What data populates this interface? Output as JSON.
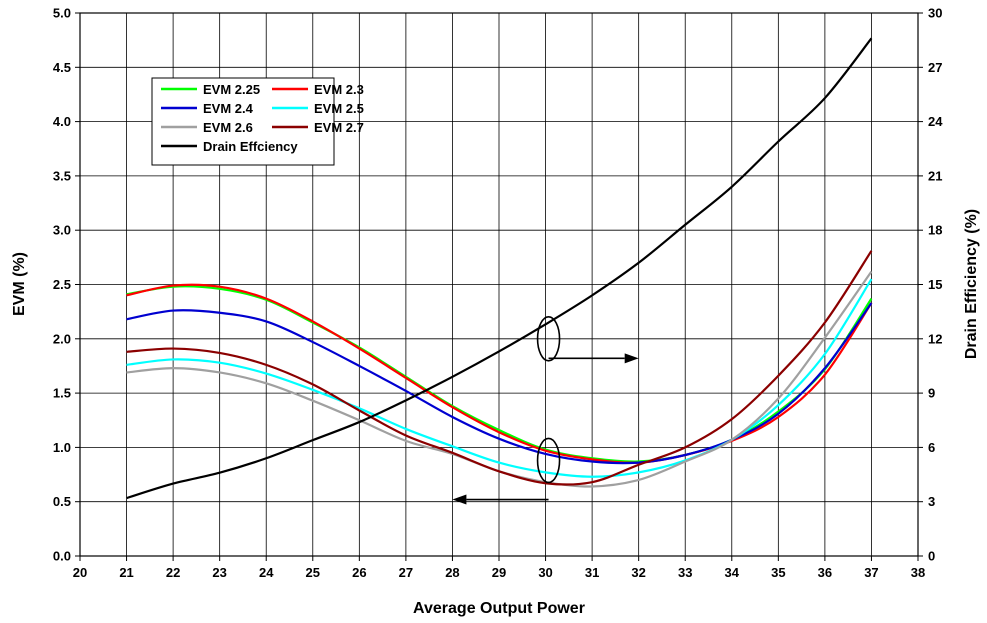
{
  "chart_data": {
    "type": "line",
    "xlabel": "Average Output Power",
    "ylabel_left": "EVM (%)",
    "ylabel_right": "Drain Efficiency (%)",
    "x_ticks": [
      20,
      21,
      22,
      23,
      24,
      25,
      26,
      27,
      28,
      29,
      30,
      31,
      32,
      33,
      34,
      35,
      36,
      37,
      38
    ],
    "y_left_ticks": [
      "0.0",
      "0.5",
      "1.0",
      "1.5",
      "2.0",
      "2.5",
      "3.0",
      "3.5",
      "4.0",
      "4.5",
      "5.0"
    ],
    "y_right_ticks": [
      "0",
      "3",
      "6",
      "9",
      "12",
      "15",
      "18",
      "21",
      "24",
      "27",
      "30"
    ],
    "xlim": [
      20,
      38
    ],
    "ylim_left": [
      0,
      5
    ],
    "ylim_right": [
      0,
      30
    ],
    "grid": true,
    "x": [
      21,
      22,
      23,
      24,
      25,
      26,
      27,
      28,
      29,
      30,
      31,
      32,
      33,
      34,
      35,
      36,
      37
    ],
    "series": [
      {
        "name": "EVM 2.25",
        "axis": "left",
        "color": "#00ff00",
        "values": [
          2.41,
          2.48,
          2.46,
          2.36,
          2.15,
          1.92,
          1.65,
          1.38,
          1.16,
          0.98,
          0.9,
          0.87,
          0.93,
          1.07,
          1.33,
          1.72,
          2.37
        ]
      },
      {
        "name": "EVM 2.3",
        "axis": "left",
        "color": "#ff0000",
        "values": [
          2.4,
          2.49,
          2.48,
          2.37,
          2.16,
          1.91,
          1.64,
          1.37,
          1.14,
          0.97,
          0.89,
          0.86,
          0.93,
          1.06,
          1.28,
          1.67,
          2.33
        ]
      },
      {
        "name": "EVM 2.4",
        "axis": "left",
        "color": "#0000d0",
        "values": [
          2.18,
          2.26,
          2.24,
          2.16,
          1.97,
          1.75,
          1.52,
          1.28,
          1.08,
          0.94,
          0.87,
          0.86,
          0.93,
          1.07,
          1.31,
          1.73,
          2.33
        ]
      },
      {
        "name": "EVM 2.5",
        "axis": "left",
        "color": "#00ffff",
        "values": [
          1.76,
          1.81,
          1.78,
          1.68,
          1.53,
          1.36,
          1.17,
          1.01,
          0.86,
          0.77,
          0.73,
          0.77,
          0.88,
          1.07,
          1.39,
          1.86,
          2.55
        ]
      },
      {
        "name": "EVM 2.6",
        "axis": "left",
        "color": "#a0a0a0",
        "values": [
          1.69,
          1.73,
          1.69,
          1.59,
          1.43,
          1.25,
          1.06,
          0.94,
          0.78,
          0.68,
          0.64,
          0.7,
          0.87,
          1.07,
          1.45,
          2.01,
          2.62
        ]
      },
      {
        "name": "EVM 2.7",
        "axis": "left",
        "color": "#8b0000",
        "values": [
          1.88,
          1.91,
          1.87,
          1.76,
          1.58,
          1.34,
          1.11,
          0.95,
          0.78,
          0.67,
          0.68,
          0.84,
          1.0,
          1.26,
          1.66,
          2.15,
          2.81
        ]
      },
      {
        "name": "Drain Effciency",
        "axis": "right",
        "color": "#000000",
        "values": [
          3.2,
          4.0,
          4.6,
          5.4,
          6.4,
          7.4,
          8.6,
          9.9,
          11.3,
          12.8,
          14.4,
          16.2,
          18.3,
          20.4,
          22.9,
          25.3,
          28.6
        ]
      }
    ],
    "annotations": [
      {
        "type": "ellipse-arrow",
        "ellipse_at": [
          30,
          2.0
        ],
        "arrow_to": [
          31.7,
          1.82
        ],
        "direction": "right"
      },
      {
        "type": "ellipse-arrow",
        "ellipse_at": [
          30,
          0.88
        ],
        "arrow_to": [
          28.3,
          0.52
        ],
        "direction": "left"
      }
    ]
  }
}
